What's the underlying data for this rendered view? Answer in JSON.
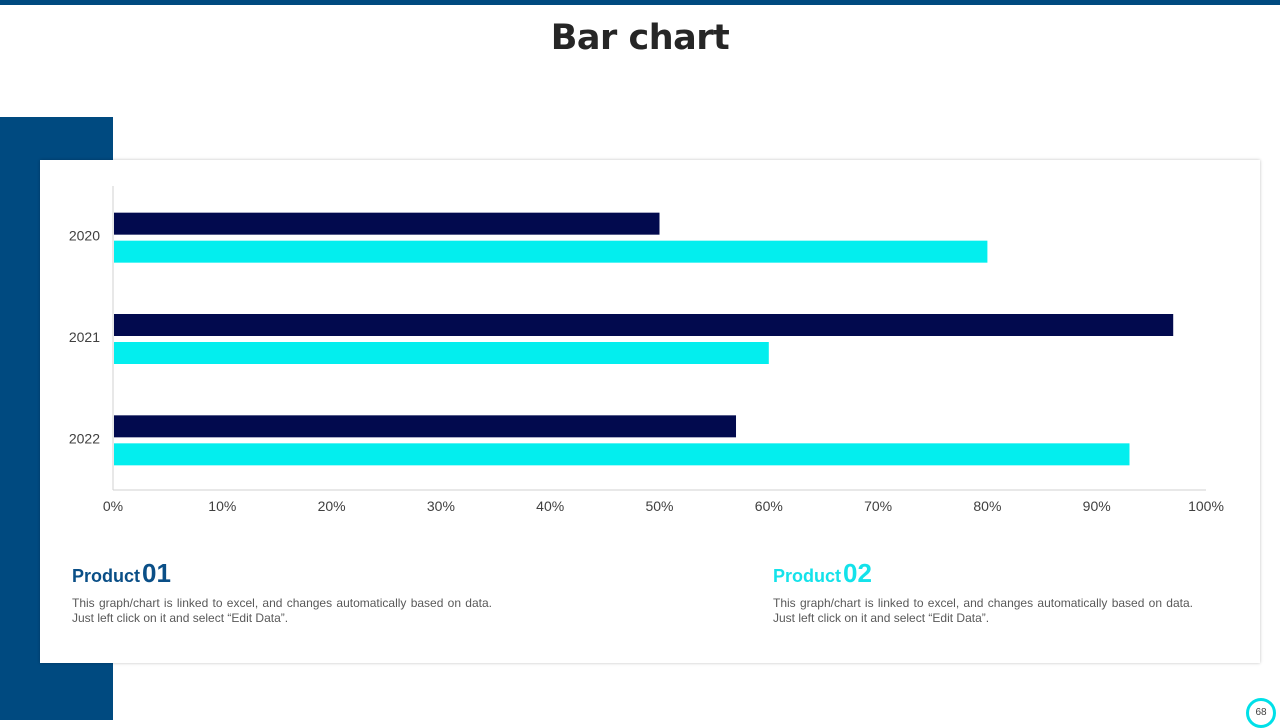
{
  "slide": {
    "title": "Bar chart",
    "page_number": "68"
  },
  "colors": {
    "brand_dark_blue": "#004a80",
    "series_1": "#020a4e",
    "series_2": "#03eeee",
    "product_01_accent": "#0a4f87",
    "product_02_accent": "#14e2ea"
  },
  "chart_data": {
    "type": "bar",
    "orientation": "horizontal",
    "categories": [
      "2020",
      "2021",
      "2022"
    ],
    "series": [
      {
        "values": [
          0.5,
          0.97,
          0.57
        ]
      },
      {
        "values": [
          0.8,
          0.6,
          0.93
        ]
      }
    ],
    "xlim": [
      0,
      1
    ],
    "x_ticks": [
      "0%",
      "10%",
      "20%",
      "30%",
      "40%",
      "50%",
      "60%",
      "70%",
      "80%",
      "90%",
      "100%"
    ],
    "grid": false,
    "legend": "none"
  },
  "products": [
    {
      "label": "Product",
      "number": "01",
      "description": "This graph/chart is linked to excel, and changes automatically based on data. Just left click on it and select “Edit Data”."
    },
    {
      "label": "Product",
      "number": "02",
      "description": "This graph/chart is linked to excel, and changes automatically based on data. Just left click on it and select “Edit Data”."
    }
  ]
}
